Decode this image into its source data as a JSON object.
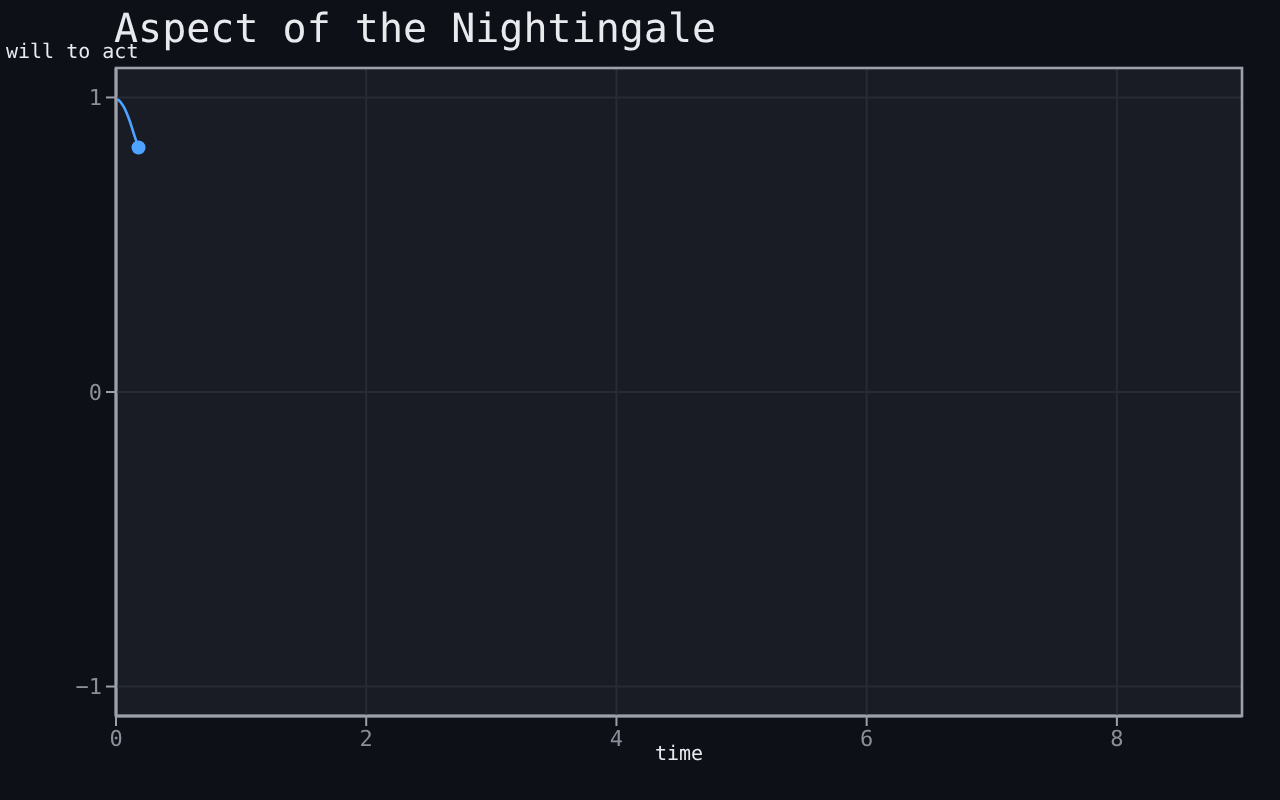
{
  "chart_data": {
    "type": "line",
    "title": "Aspect of the Nightingale",
    "xlabel": "time",
    "ylabel": "will to act",
    "xlim": [
      0,
      9
    ],
    "xticks": [
      0,
      2,
      4,
      6,
      8
    ],
    "ylim": [
      -1.1,
      1.1
    ],
    "yticks": [
      -1,
      0,
      1
    ],
    "grid": true,
    "marker": "none",
    "series": [
      {
        "color": "#4da3ff",
        "x": [
          0,
          0.06,
          0.11,
          0.14,
          0.18
        ],
        "values": [
          1,
          0.97,
          0.92,
          0.88,
          0.83
        ]
      },
      {
        "type": "scatter",
        "marker": "circle",
        "color": "#4da3ff",
        "x": [
          0.18
        ],
        "values": [
          0.83
        ]
      }
    ]
  }
}
